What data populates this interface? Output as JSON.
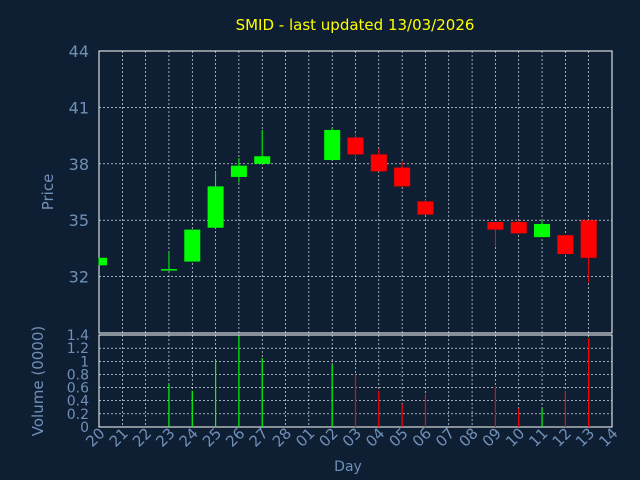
{
  "chart_data": [
    {
      "type": "candlestick",
      "title": "SMID - last updated 13/03/2026",
      "ylabel": "Price",
      "ylim": [
        29,
        44
      ],
      "y_ticks": [
        "44",
        "41",
        "38",
        "35",
        "32"
      ],
      "grid": true,
      "colors": {
        "up": "#00ff00",
        "down": "#ff0000"
      },
      "candles": [
        {
          "x": "20",
          "open": 32.6,
          "high": 33.0,
          "low": 32.6,
          "close": 33.0
        },
        {
          "x": "23",
          "open": 32.4,
          "high": 33.3,
          "low": 32.4,
          "close": 32.4
        },
        {
          "x": "24",
          "open": 32.8,
          "high": 34.5,
          "low": 32.8,
          "close": 34.5
        },
        {
          "x": "25",
          "open": 34.6,
          "high": 37.5,
          "low": 34.6,
          "close": 36.8
        },
        {
          "x": "26",
          "open": 37.3,
          "high": 38.3,
          "low": 37.0,
          "close": 37.9
        },
        {
          "x": "27",
          "open": 38.0,
          "high": 39.8,
          "low": 38.0,
          "close": 38.4
        },
        {
          "x": "02",
          "open": 38.2,
          "high": 39.9,
          "low": 38.2,
          "close": 39.8
        },
        {
          "x": "03",
          "open": 39.4,
          "high": 39.6,
          "low": 38.3,
          "close": 38.5
        },
        {
          "x": "04",
          "open": 38.5,
          "high": 38.8,
          "low": 37.6,
          "close": 37.6
        },
        {
          "x": "05",
          "open": 37.8,
          "high": 38.1,
          "low": 36.8,
          "close": 36.8
        },
        {
          "x": "06",
          "open": 36.0,
          "high": 36.1,
          "low": 35.3,
          "close": 35.3
        },
        {
          "x": "09",
          "open": 34.9,
          "high": 34.9,
          "low": 33.6,
          "close": 34.5
        },
        {
          "x": "10",
          "open": 34.9,
          "high": 35.0,
          "low": 34.3,
          "close": 34.3
        },
        {
          "x": "11",
          "open": 34.1,
          "high": 35.0,
          "low": 34.1,
          "close": 34.8
        },
        {
          "x": "12",
          "open": 34.2,
          "high": 34.2,
          "low": 33.2,
          "close": 33.2
        },
        {
          "x": "13",
          "open": 35.0,
          "high": 35.0,
          "low": 31.7,
          "close": 33.0
        }
      ]
    },
    {
      "type": "bar",
      "xlabel": "Day",
      "ylabel": "Volume (0000)",
      "ylim": [
        0,
        1.4
      ],
      "y_ticks": [
        "0",
        "0.2",
        "0.4",
        "0.6",
        "0.8",
        "1",
        "1.2",
        "1.4"
      ],
      "categories": [
        "20",
        "21",
        "22",
        "23",
        "24",
        "25",
        "26",
        "27",
        "28",
        "01",
        "02",
        "03",
        "04",
        "05",
        "06",
        "07",
        "08",
        "09",
        "10",
        "11",
        "12",
        "13",
        "14"
      ],
      "bars": [
        {
          "x": "23",
          "value": 0.65,
          "color": "#00ff00"
        },
        {
          "x": "24",
          "value": 0.55,
          "color": "#00ff00"
        },
        {
          "x": "25",
          "value": 1.02,
          "color": "#00ff00"
        },
        {
          "x": "26",
          "value": 1.38,
          "color": "#00ff00"
        },
        {
          "x": "27",
          "value": 1.05,
          "color": "#00ff00"
        },
        {
          "x": "02",
          "value": 0.95,
          "color": "#00ff00"
        },
        {
          "x": "03",
          "value": 0.8,
          "color": "#ff0000"
        },
        {
          "x": "04",
          "value": 0.55,
          "color": "#ff0000"
        },
        {
          "x": "05",
          "value": 0.35,
          "color": "#ff0000"
        },
        {
          "x": "06",
          "value": 0.5,
          "color": "#ff0000"
        },
        {
          "x": "09",
          "value": 0.62,
          "color": "#ff0000"
        },
        {
          "x": "10",
          "value": 0.28,
          "color": "#ff0000"
        },
        {
          "x": "11",
          "value": 0.28,
          "color": "#00ff00"
        },
        {
          "x": "12",
          "value": 0.55,
          "color": "#ff0000"
        },
        {
          "x": "13",
          "value": 1.35,
          "color": "#ff0000"
        }
      ]
    }
  ],
  "style": {
    "background": "#0f1f33",
    "title_color": "#ffff00",
    "text_color": "#7090b8",
    "grid_color": "#ffffff"
  }
}
